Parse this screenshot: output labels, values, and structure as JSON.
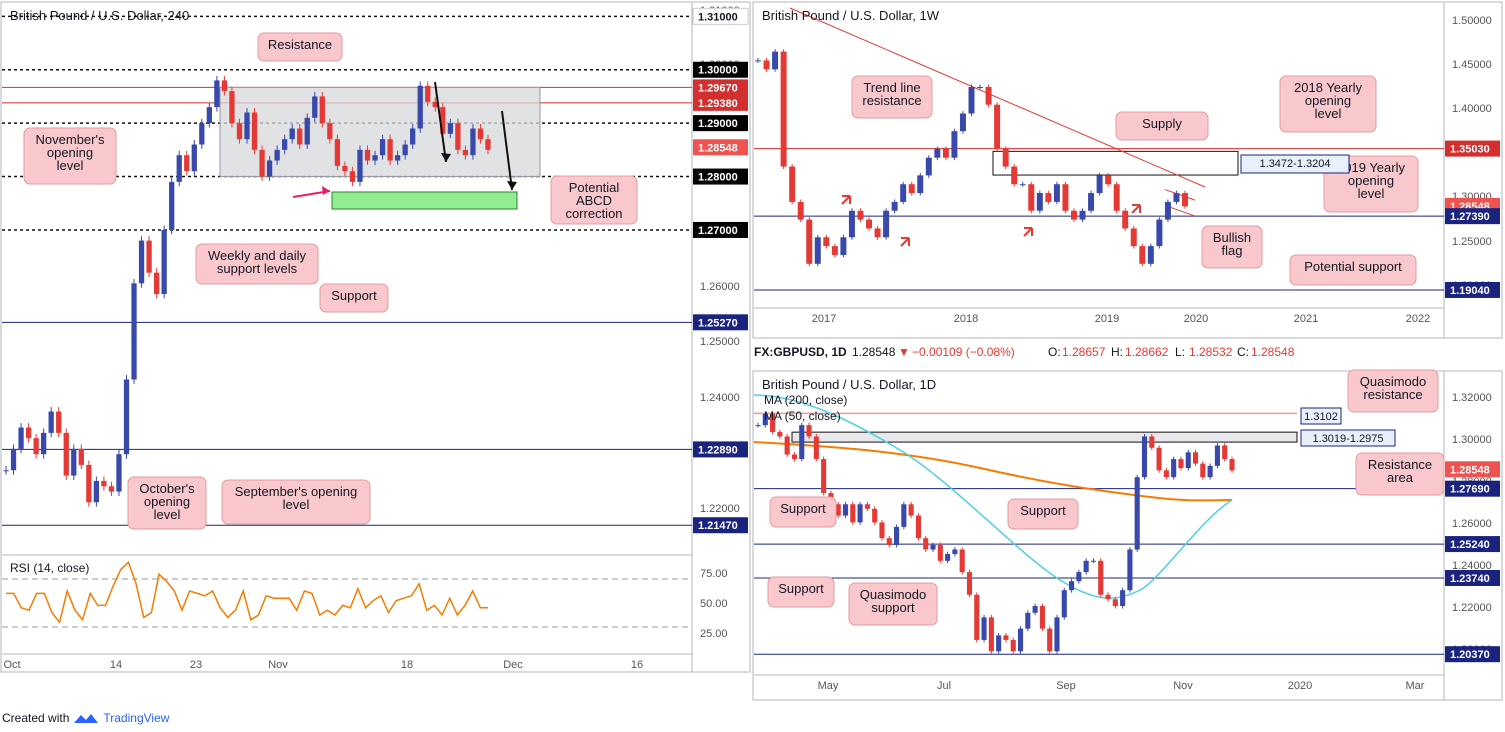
{
  "chart_data": [
    {
      "type": "candlestick",
      "title": "British Pound / U.S. Dollar, 240",
      "x_ticks": [
        "Oct",
        "14",
        "23",
        "Nov",
        "18",
        "Dec",
        "16"
      ],
      "y_ticks": [
        "1.31000",
        "1.30000",
        "1.29000",
        "1.28000",
        "1.27000",
        "1.26000",
        "1.25000",
        "1.24000",
        "1.23000",
        "1.22000"
      ],
      "y_range": [
        1.2095,
        1.3125
      ],
      "price_labels": [
        {
          "text": "1.31000",
          "price": 1.31,
          "color": "#ffffff",
          "text_color": "#131722"
        },
        {
          "text": "1.30000",
          "price": 1.3,
          "color": "#000000",
          "text_color": "#ffffff"
        },
        {
          "text": "1.29670",
          "price": 1.2967,
          "color": "#d32f2f",
          "text_color": "#ffffff"
        },
        {
          "text": "1.29380",
          "price": 1.2938,
          "color": "#d32f2f",
          "text_color": "#ffffff"
        },
        {
          "text": "1.29000",
          "price": 1.29,
          "color": "#000000",
          "text_color": "#ffffff"
        },
        {
          "text": "1.28548",
          "price": 1.28548,
          "color": "#ef5350",
          "text_color": "#ffffff"
        },
        {
          "text": "1.28000",
          "price": 1.28,
          "color": "#000000",
          "text_color": "#ffffff"
        },
        {
          "text": "1.27000",
          "price": 1.27,
          "color": "#000000",
          "text_color": "#ffffff"
        },
        {
          "text": "1.25270",
          "price": 1.2527,
          "color": "#1a237e",
          "text_color": "#ffffff"
        },
        {
          "text": "1.22890",
          "price": 1.2289,
          "color": "#1a237e",
          "text_color": "#ffffff"
        },
        {
          "text": "1.21470",
          "price": 1.2147,
          "color": "#1a237e",
          "text_color": "#ffffff"
        }
      ],
      "annotations": [
        {
          "text": "Resistance"
        },
        {
          "text": "November's\nopening\nlevel"
        },
        {
          "text": "Potential\nABCD\ncorrection"
        },
        {
          "text": "Weekly and daily\nsupport levels"
        },
        {
          "text": "Support"
        },
        {
          "text": "October's\nopening\nlevel"
        },
        {
          "text": "September's opening\nlevel"
        }
      ],
      "rsi": {
        "label": "RSI (14, close)",
        "ticks": [
          "75.00",
          "50.00",
          "25.00"
        ],
        "levels": [
          70,
          30
        ],
        "range": [
          15,
          90
        ]
      },
      "price_path": [
        1.225,
        1.229,
        1.233,
        1.231,
        1.228,
        1.232,
        1.236,
        1.232,
        1.224,
        1.229,
        1.226,
        1.219,
        1.223,
        1.222,
        1.221,
        1.228,
        1.242,
        1.26,
        1.268,
        1.262,
        1.258,
        1.27,
        1.279,
        1.284,
        1.281,
        1.286,
        1.29,
        1.293,
        1.298,
        1.296,
        1.29,
        1.287,
        1.292,
        1.285,
        1.28,
        1.283,
        1.285,
        1.287,
        1.289,
        1.286,
        1.291,
        1.295,
        1.29,
        1.287,
        1.282,
        1.281,
        1.279,
        1.285,
        1.283,
        1.284,
        1.287,
        1.283,
        1.284,
        1.286,
        1.289,
        1.297,
        1.294,
        1.293,
        1.288,
        1.29,
        1.285,
        1.284,
        1.289,
        1.287,
        1.285
      ]
    },
    {
      "type": "candlestick",
      "title": "British Pound / U.S. Dollar, 1W",
      "x_ticks": [
        "2017",
        "2018",
        "2019",
        "2020",
        "2021",
        "2022"
      ],
      "y_ticks": [
        "1.50000",
        "1.45000",
        "1.40000",
        "1.35000",
        "1.30000",
        "1.25000",
        "1.20000"
      ],
      "y_range": [
        1.17,
        1.515
      ],
      "price_labels": [
        {
          "text": "1.35030",
          "price": 1.3503,
          "color": "#d32f2f",
          "text_color": "#ffffff"
        },
        {
          "text": "1.28548",
          "price": 1.28548,
          "color": "#ef5350",
          "text_color": "#ffffff"
        },
        {
          "text": "1.27390",
          "price": 1.2739,
          "color": "#1a237e",
          "text_color": "#ffffff"
        },
        {
          "text": "1.19040",
          "price": 1.1904,
          "color": "#1a237e",
          "text_color": "#ffffff"
        }
      ],
      "annotations": [
        {
          "text": "Trend line\nresistance"
        },
        {
          "text": "Supply"
        },
        {
          "text": "2018 Yearly\nopening\nlevel"
        },
        {
          "text": "2019 Yearly\nopening\nlevel"
        },
        {
          "text": "Bullish\nflag"
        },
        {
          "text": "Potential support"
        },
        {
          "text": "1.3472-1.3204"
        }
      ],
      "price_path": [
        1.45,
        1.44,
        1.46,
        1.33,
        1.29,
        1.27,
        1.22,
        1.25,
        1.24,
        1.23,
        1.25,
        1.28,
        1.27,
        1.26,
        1.25,
        1.28,
        1.29,
        1.31,
        1.3,
        1.32,
        1.34,
        1.35,
        1.34,
        1.37,
        1.39,
        1.42,
        1.42,
        1.4,
        1.35,
        1.33,
        1.31,
        1.31,
        1.28,
        1.3,
        1.29,
        1.31,
        1.28,
        1.27,
        1.28,
        1.3,
        1.32,
        1.31,
        1.28,
        1.26,
        1.24,
        1.22,
        1.24,
        1.27,
        1.29,
        1.3,
        1.285
      ]
    },
    {
      "type": "candlestick",
      "title": "British Pound / U.S. Dollar, 1D",
      "x_ticks": [
        "May",
        "Jul",
        "Sep",
        "Nov",
        "2020",
        "Mar"
      ],
      "y_ticks": [
        "1.32000",
        "1.30000",
        "1.28000",
        "1.26000",
        "1.24000",
        "1.22000",
        "1.20000"
      ],
      "y_range": [
        1.1945,
        1.3285
      ],
      "legend": [
        "MA (200, close)",
        "MA (50, close)"
      ],
      "header": {
        "symbol": "FX:GBPUSD, 1D",
        "last": "1.28548",
        "change": "−0.00109 (−0.08%)",
        "o": "1.28657",
        "h": "1.28662",
        "l": "1.28532",
        "c": "1.28548"
      },
      "price_labels": [
        {
          "text": "1.28548",
          "price": 1.28548,
          "color": "#ef5350",
          "text_color": "#ffffff"
        },
        {
          "text": "1.27690",
          "price": 1.2769,
          "color": "#1a237e",
          "text_color": "#ffffff"
        },
        {
          "text": "1.25240",
          "price": 1.2524,
          "color": "#1a237e",
          "text_color": "#ffffff"
        },
        {
          "text": "1.23740",
          "price": 1.2374,
          "color": "#1a237e",
          "text_color": "#ffffff"
        },
        {
          "text": "1.20370",
          "price": 1.2037,
          "color": "#1a237e",
          "text_color": "#ffffff"
        }
      ],
      "annotations": [
        {
          "text": "Quasimodo\nresistance"
        },
        {
          "text": "Resistance\narea"
        },
        {
          "text": "Support"
        },
        {
          "text": "Support"
        },
        {
          "text": "Support"
        },
        {
          "text": "Quasimodo\nsupport"
        },
        {
          "text": "1.3102"
        },
        {
          "text": "1.3019-1.2975"
        }
      ],
      "price_path": [
        1.305,
        1.31,
        1.302,
        1.3,
        1.292,
        1.29,
        1.305,
        1.3,
        1.29,
        1.275,
        1.27,
        1.265,
        1.27,
        1.262,
        1.27,
        1.268,
        1.262,
        1.255,
        1.252,
        1.26,
        1.27,
        1.265,
        1.255,
        1.25,
        1.252,
        1.245,
        1.248,
        1.25,
        1.24,
        1.23,
        1.21,
        1.22,
        1.205,
        1.212,
        1.21,
        1.205,
        1.215,
        1.222,
        1.225,
        1.215,
        1.205,
        1.22,
        1.232,
        1.236,
        1.24,
        1.245,
        1.245,
        1.23,
        1.228,
        1.225,
        1.232,
        1.25,
        1.282,
        1.3,
        1.295,
        1.285,
        1.282,
        1.29,
        1.286,
        1.293,
        1.288,
        1.282,
        1.287,
        1.296,
        1.29,
        1.285
      ]
    }
  ],
  "footer": {
    "created_with": "Created with",
    "brand": "TradingView"
  }
}
